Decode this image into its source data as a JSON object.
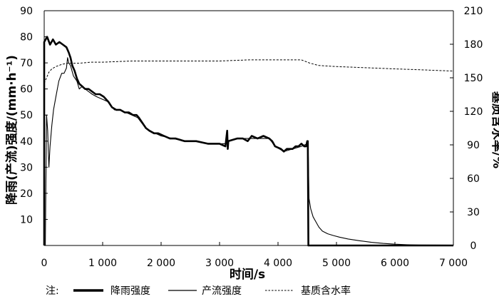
{
  "chart_data": {
    "type": "line",
    "xlabel": "时间/s",
    "ylabel_left": "降雨(产流)强度/(mm·h⁻¹)",
    "ylabel_right": "基质含水率/%",
    "xlim": [
      0,
      7000
    ],
    "ylim_left": [
      0,
      90
    ],
    "ylim_right": [
      0,
      210
    ],
    "xticks": [
      0,
      1000,
      2000,
      3000,
      4000,
      5000,
      6000,
      7000
    ],
    "xtick_labels": [
      "0",
      "1 000",
      "2 000",
      "3 000",
      "4 000",
      "5 000",
      "6 000",
      "7 000"
    ],
    "yticks_left": [
      10,
      20,
      30,
      40,
      50,
      60,
      70,
      80,
      90
    ],
    "yticks_right": [
      0,
      30,
      60,
      90,
      120,
      150,
      180,
      210
    ],
    "grid": false,
    "legend_placement": "bottom",
    "legend_prefix": "注:",
    "series": [
      {
        "name": "降雨强度",
        "axis": "left",
        "style": "thick-solid",
        "points": [
          [
            0,
            0
          ],
          [
            0,
            78
          ],
          [
            50,
            80
          ],
          [
            100,
            77
          ],
          [
            150,
            79
          ],
          [
            200,
            77
          ],
          [
            260,
            78
          ],
          [
            320,
            77
          ],
          [
            380,
            76
          ],
          [
            420,
            74
          ],
          [
            450,
            72
          ],
          [
            480,
            69
          ],
          [
            520,
            67
          ],
          [
            560,
            64
          ],
          [
            600,
            62
          ],
          [
            650,
            61
          ],
          [
            700,
            60
          ],
          [
            760,
            60
          ],
          [
            820,
            59
          ],
          [
            880,
            58
          ],
          [
            950,
            58
          ],
          [
            1020,
            57
          ],
          [
            1100,
            55
          ],
          [
            1160,
            53
          ],
          [
            1230,
            52
          ],
          [
            1300,
            52
          ],
          [
            1380,
            51
          ],
          [
            1450,
            51
          ],
          [
            1520,
            50
          ],
          [
            1580,
            50
          ],
          [
            1620,
            49
          ],
          [
            1680,
            47
          ],
          [
            1740,
            45
          ],
          [
            1800,
            44
          ],
          [
            1880,
            43
          ],
          [
            1950,
            43
          ],
          [
            2050,
            42
          ],
          [
            2150,
            41
          ],
          [
            2250,
            41
          ],
          [
            2400,
            40
          ],
          [
            2600,
            40
          ],
          [
            2800,
            39
          ],
          [
            3000,
            39
          ],
          [
            3100,
            38
          ],
          [
            3130,
            44
          ],
          [
            3140,
            37
          ],
          [
            3150,
            40
          ],
          [
            3300,
            41
          ],
          [
            3400,
            41
          ],
          [
            3480,
            40
          ],
          [
            3550,
            42
          ],
          [
            3650,
            41
          ],
          [
            3750,
            42
          ],
          [
            3850,
            41
          ],
          [
            3900,
            40
          ],
          [
            3950,
            38
          ],
          [
            4050,
            37
          ],
          [
            4100,
            36
          ],
          [
            4150,
            37
          ],
          [
            4250,
            37
          ],
          [
            4300,
            38
          ],
          [
            4350,
            38
          ],
          [
            4400,
            39
          ],
          [
            4450,
            38
          ],
          [
            4480,
            38
          ],
          [
            4500,
            40
          ],
          [
            4510,
            40
          ],
          [
            4520,
            0
          ],
          [
            7000,
            0
          ]
        ]
      },
      {
        "name": "产流强度",
        "axis": "left",
        "style": "thin-solid",
        "points": [
          [
            0,
            0
          ],
          [
            20,
            0
          ],
          [
            40,
            50
          ],
          [
            60,
            44
          ],
          [
            80,
            30
          ],
          [
            100,
            38
          ],
          [
            130,
            46
          ],
          [
            160,
            52
          ],
          [
            200,
            57
          ],
          [
            250,
            63
          ],
          [
            300,
            66
          ],
          [
            340,
            66
          ],
          [
            380,
            68
          ],
          [
            400,
            72
          ],
          [
            420,
            70
          ],
          [
            450,
            69
          ],
          [
            500,
            65
          ],
          [
            560,
            63
          ],
          [
            600,
            60
          ],
          [
            650,
            61
          ],
          [
            700,
            60
          ],
          [
            760,
            59
          ],
          [
            820,
            58
          ],
          [
            900,
            57
          ],
          [
            1000,
            56
          ],
          [
            1100,
            55
          ],
          [
            1200,
            52
          ],
          [
            1300,
            52
          ],
          [
            1400,
            51
          ],
          [
            1500,
            50
          ],
          [
            1600,
            49
          ],
          [
            1700,
            46
          ],
          [
            1800,
            44
          ],
          [
            1900,
            43
          ],
          [
            2000,
            42
          ],
          [
            2200,
            41
          ],
          [
            2400,
            40
          ],
          [
            2600,
            40
          ],
          [
            2800,
            39
          ],
          [
            3000,
            39
          ],
          [
            3100,
            39
          ],
          [
            3150,
            40
          ],
          [
            3300,
            41
          ],
          [
            3500,
            41
          ],
          [
            3700,
            41
          ],
          [
            3850,
            41
          ],
          [
            3950,
            38
          ],
          [
            4100,
            36
          ],
          [
            4250,
            37
          ],
          [
            4400,
            38
          ],
          [
            4500,
            39
          ],
          [
            4515,
            39
          ],
          [
            4530,
            18
          ],
          [
            4560,
            14
          ],
          [
            4600,
            11
          ],
          [
            4650,
            9
          ],
          [
            4700,
            7
          ],
          [
            4760,
            5.5
          ],
          [
            4850,
            4.5
          ],
          [
            4950,
            3.8
          ],
          [
            5050,
            3.2
          ],
          [
            5200,
            2.5
          ],
          [
            5400,
            1.8
          ],
          [
            5600,
            1.2
          ],
          [
            5800,
            0.8
          ],
          [
            6000,
            0.5
          ],
          [
            6200,
            0.3
          ],
          [
            6400,
            0.2
          ],
          [
            7000,
            0.1
          ]
        ]
      },
      {
        "name": "基质含水率",
        "axis": "right",
        "style": "dashed",
        "points": [
          [
            0,
            145
          ],
          [
            40,
            150
          ],
          [
            80,
            155
          ],
          [
            130,
            158
          ],
          [
            200,
            160
          ],
          [
            300,
            162
          ],
          [
            400,
            163
          ],
          [
            600,
            163
          ],
          [
            800,
            164
          ],
          [
            1000,
            164
          ],
          [
            1500,
            165
          ],
          [
            2000,
            165
          ],
          [
            2500,
            165
          ],
          [
            3000,
            165
          ],
          [
            3500,
            166
          ],
          [
            4000,
            166
          ],
          [
            4200,
            166
          ],
          [
            4400,
            166
          ],
          [
            4550,
            163
          ],
          [
            4700,
            161
          ],
          [
            5000,
            160
          ],
          [
            5500,
            159
          ],
          [
            6000,
            158
          ],
          [
            6500,
            157
          ],
          [
            7000,
            156
          ]
        ]
      }
    ]
  }
}
